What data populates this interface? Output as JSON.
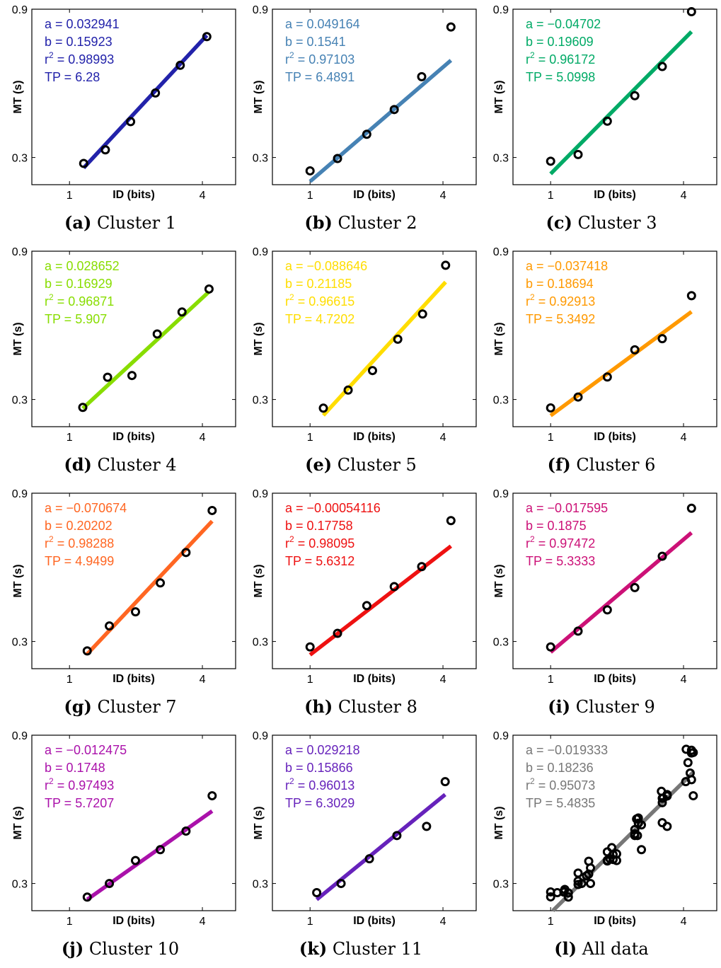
{
  "chart_data": [
    {
      "type": "scatter",
      "panel_letter": "(a)",
      "caption": "Cluster 1",
      "color": "#2222aa",
      "stats": {
        "a": "a = 0.032941",
        "b": "b = 0.15923",
        "r2": "0.98993",
        "tp": "TP = 6.28"
      },
      "xlabel": "ID (bits)",
      "ylabel": "MT (s)",
      "xlim": [
        0.15,
        4.75
      ],
      "ylim": [
        0.19,
        0.9
      ],
      "xticks": [
        "1",
        "4"
      ],
      "xtick_values": [
        1,
        4
      ],
      "yticks": [
        "0.3",
        "0.9"
      ],
      "ytick_values": [
        0.3,
        0.9
      ],
      "x": [
        1.32,
        1.81,
        2.38,
        2.94,
        3.5,
        4.1
      ],
      "y": [
        0.276,
        0.331,
        0.445,
        0.561,
        0.673,
        0.789
      ],
      "fit": {
        "x": [
          1.32,
          4.1
        ],
        "y": [
          0.258,
          0.794
        ]
      }
    },
    {
      "type": "scatter",
      "panel_letter": "(b)",
      "caption": "Cluster 2",
      "color": "#4682b4",
      "stats": {
        "a": "a = 0.049164",
        "b": "b = 0.1541",
        "r2": "0.97103",
        "tp": "TP = 6.4891"
      },
      "xlabel": "ID (bits)",
      "ylabel": "MT (s)",
      "xlim": [
        0.15,
        4.75
      ],
      "ylim": [
        0.19,
        0.9
      ],
      "xticks": [
        "1",
        "4"
      ],
      "xtick_values": [
        1,
        4
      ],
      "yticks": [
        "0.3",
        "0.9"
      ],
      "ytick_values": [
        0.3,
        0.9
      ],
      "x": [
        1.0,
        1.62,
        2.28,
        2.9,
        3.52,
        4.18
      ],
      "y": [
        0.246,
        0.296,
        0.394,
        0.494,
        0.627,
        0.828
      ],
      "fit": {
        "x": [
          1.0,
          4.18
        ],
        "y": [
          0.203,
          0.693
        ]
      }
    },
    {
      "type": "scatter",
      "panel_letter": "(c)",
      "caption": "Cluster 3",
      "color": "#00aa66",
      "stats": {
        "a": "a = −0.04702",
        "b": "b = 0.19609",
        "r2": "0.96172",
        "tp": "TP = 5.0998"
      },
      "xlabel": "ID (bits)",
      "ylabel": "MT (s)",
      "xlim": [
        0.15,
        4.75
      ],
      "ylim": [
        0.19,
        0.9
      ],
      "xticks": [
        "1",
        "4"
      ],
      "xtick_values": [
        1,
        4
      ],
      "yticks": [
        "0.3",
        "0.9"
      ],
      "ytick_values": [
        0.3,
        0.9
      ],
      "x": [
        1.0,
        1.62,
        2.28,
        2.9,
        3.52,
        4.18
      ],
      "y": [
        0.285,
        0.312,
        0.447,
        0.55,
        0.668,
        0.89
      ],
      "fit": {
        "x": [
          1.0,
          4.18
        ],
        "y": [
          0.234,
          0.809
        ]
      }
    },
    {
      "type": "scatter",
      "panel_letter": "(d)",
      "caption": "Cluster 4",
      "color": "#88dd00",
      "stats": {
        "a": "a = 0.028652",
        "b": "b = 0.16929",
        "r2": "0.96871",
        "tp": "TP = 5.907"
      },
      "xlabel": "ID (bits)",
      "ylabel": "MT (s)",
      "xlim": [
        0.15,
        4.75
      ],
      "ylim": [
        0.19,
        0.9
      ],
      "xticks": [
        "1",
        "4"
      ],
      "xtick_values": [
        1,
        4
      ],
      "yticks": [
        "0.3",
        "0.9"
      ],
      "ytick_values": [
        0.3,
        0.9
      ],
      "x": [
        1.3,
        1.86,
        2.41,
        2.98,
        3.54,
        4.15
      ],
      "y": [
        0.268,
        0.39,
        0.397,
        0.565,
        0.654,
        0.747
      ],
      "fit": {
        "x": [
          1.3,
          4.15
        ],
        "y": [
          0.264,
          0.736
        ]
      }
    },
    {
      "type": "scatter",
      "panel_letter": "(e)",
      "caption": "Cluster 5",
      "color": "#ffdd00",
      "stats": {
        "a": "a = −0.088646",
        "b": "b = 0.21185",
        "r2": "0.96615",
        "tp": "TP = 4.7202"
      },
      "xlabel": "ID (bits)",
      "ylabel": "MT (s)",
      "xlim": [
        0.15,
        4.75
      ],
      "ylim": [
        0.19,
        0.9
      ],
      "xticks": [
        "1",
        "4"
      ],
      "xtick_values": [
        1,
        4
      ],
      "yticks": [
        "0.3",
        "0.9"
      ],
      "ytick_values": [
        0.3,
        0.9
      ],
      "x": [
        1.3,
        1.86,
        2.41,
        2.98,
        3.54,
        4.06
      ],
      "y": [
        0.265,
        0.338,
        0.417,
        0.544,
        0.646,
        0.843
      ],
      "fit": {
        "x": [
          1.3,
          4.06
        ],
        "y": [
          0.236,
          0.775
        ]
      }
    },
    {
      "type": "scatter",
      "panel_letter": "(f)",
      "caption": "Cluster 6",
      "color": "#ff9900",
      "stats": {
        "a": "a = −0.037418",
        "b": "b = 0.18694",
        "r2": "0.92913",
        "tp": "TP = 5.3492"
      },
      "xlabel": "ID (bits)",
      "ylabel": "MT (s)",
      "xlim": [
        0.15,
        4.75
      ],
      "ylim": [
        0.19,
        0.9
      ],
      "xticks": [
        "1",
        "4"
      ],
      "xtick_values": [
        1,
        4
      ],
      "yticks": [
        "0.3",
        "0.9"
      ],
      "ytick_values": [
        0.3,
        0.9
      ],
      "x": [
        1.0,
        1.62,
        2.28,
        2.9,
        3.52,
        4.18
      ],
      "y": [
        0.266,
        0.31,
        0.391,
        0.501,
        0.546,
        0.72
      ],
      "fit": {
        "x": [
          1.0,
          4.18
        ],
        "y": [
          0.235,
          0.655
        ]
      }
    },
    {
      "type": "scatter",
      "panel_letter": "(g)",
      "caption": "Cluster 7",
      "color": "#ff6622",
      "stats": {
        "a": "a = −0.070674",
        "b": "b = 0.20202",
        "r2": "0.98288",
        "tp": "TP = 4.9499"
      },
      "xlabel": "ID (bits)",
      "ylabel": "MT (s)",
      "xlim": [
        0.15,
        4.75
      ],
      "ylim": [
        0.19,
        0.9
      ],
      "xticks": [
        "1",
        "4"
      ],
      "xtick_values": [
        1,
        4
      ],
      "yticks": [
        "0.3",
        "0.9"
      ],
      "ytick_values": [
        0.3,
        0.9
      ],
      "x": [
        1.4,
        1.9,
        2.49,
        3.05,
        3.63,
        4.22
      ],
      "y": [
        0.262,
        0.363,
        0.42,
        0.537,
        0.66,
        0.83
      ],
      "fit": {
        "x": [
          1.4,
          4.22
        ],
        "y": [
          0.249,
          0.787
        ]
      }
    },
    {
      "type": "scatter",
      "panel_letter": "(h)",
      "caption": "Cluster 8",
      "color": "#ee1111",
      "stats": {
        "a": "a = −0.00054116",
        "b": "b = 0.17758",
        "r2": "0.98095",
        "tp": "TP = 5.6312"
      },
      "xlabel": "ID (bits)",
      "ylabel": "MT (s)",
      "xlim": [
        0.15,
        4.75
      ],
      "ylim": [
        0.19,
        0.9
      ],
      "xticks": [
        "1",
        "4"
      ],
      "xtick_values": [
        1,
        4
      ],
      "yticks": [
        "0.3",
        "0.9"
      ],
      "ytick_values": [
        0.3,
        0.9
      ],
      "x": [
        1.0,
        1.62,
        2.28,
        2.9,
        3.52,
        4.18
      ],
      "y": [
        0.278,
        0.333,
        0.445,
        0.522,
        0.603,
        0.789
      ],
      "fit": {
        "x": [
          1.0,
          4.18
        ],
        "y": [
          0.246,
          0.686
        ]
      }
    },
    {
      "type": "scatter",
      "panel_letter": "(i)",
      "caption": "Cluster 9",
      "color": "#cc1177",
      "stats": {
        "a": "a = −0.017595",
        "b": "b = 0.1875",
        "r2": "0.97472",
        "tp": "TP = 5.3333"
      },
      "xlabel": "ID (bits)",
      "ylabel": "MT (s)",
      "xlim": [
        0.15,
        4.75
      ],
      "ylim": [
        0.19,
        0.9
      ],
      "xticks": [
        "1",
        "4"
      ],
      "xtick_values": [
        1,
        4
      ],
      "yticks": [
        "0.3",
        "0.9"
      ],
      "ytick_values": [
        0.3,
        0.9
      ],
      "x": [
        1.0,
        1.62,
        2.28,
        2.9,
        3.52,
        4.18
      ],
      "y": [
        0.278,
        0.342,
        0.428,
        0.518,
        0.645,
        0.839
      ],
      "fit": {
        "x": [
          1.0,
          4.18
        ],
        "y": [
          0.257,
          0.74
        ]
      }
    },
    {
      "type": "scatter",
      "panel_letter": "(j)",
      "caption": "Cluster 10",
      "color": "#aa11aa",
      "stats": {
        "a": "a = −0.012475",
        "b": "b = 0.1748",
        "r2": "0.97493",
        "tp": "TP = 5.7207"
      },
      "xlabel": "ID (bits)",
      "ylabel": "MT (s)",
      "xlim": [
        0.15,
        4.75
      ],
      "ylim": [
        0.19,
        0.9
      ],
      "xticks": [
        "1",
        "4"
      ],
      "xtick_values": [
        1,
        4
      ],
      "yticks": [
        "0.3",
        "0.9"
      ],
      "ytick_values": [
        0.3,
        0.9
      ],
      "x": [
        1.4,
        1.9,
        2.49,
        3.05,
        3.63,
        4.22
      ],
      "y": [
        0.245,
        0.3,
        0.393,
        0.437,
        0.512,
        0.655
      ],
      "fit": {
        "x": [
          1.4,
          4.22
        ],
        "y": [
          0.235,
          0.593
        ]
      }
    },
    {
      "type": "scatter",
      "panel_letter": "(k)",
      "caption": "Cluster 11",
      "color": "#6622bb",
      "stats": {
        "a": "a = 0.029218",
        "b": "b = 0.15866",
        "r2": "0.96013",
        "tp": "TP = 6.3029"
      },
      "xlabel": "ID (bits)",
      "ylabel": "MT (s)",
      "xlim": [
        0.15,
        4.75
      ],
      "ylim": [
        0.19,
        0.9
      ],
      "xticks": [
        "1",
        "4"
      ],
      "xtick_values": [
        1,
        4
      ],
      "yticks": [
        "0.3",
        "0.9"
      ],
      "ytick_values": [
        0.3,
        0.9
      ],
      "x": [
        1.15,
        1.7,
        2.34,
        2.96,
        3.63,
        4.05
      ],
      "y": [
        0.263,
        0.3,
        0.4,
        0.494,
        0.531,
        0.712
      ],
      "fit": {
        "x": [
          1.15,
          4.05
        ],
        "y": [
          0.235,
          0.66
        ]
      }
    },
    {
      "type": "scatter",
      "panel_letter": "(l)",
      "caption": "All data",
      "color": "#777777",
      "stats": {
        "a": "a = −0.019333",
        "b": "b = 0.18236",
        "r2": "0.95073",
        "tp": "TP = 5.4835"
      },
      "xlabel": "ID (bits)",
      "ylabel": "MT (s)",
      "xlim": [
        0.15,
        4.75
      ],
      "ylim": [
        0.19,
        0.9
      ],
      "xticks": [
        "1",
        "4"
      ],
      "xtick_values": [
        1,
        4
      ],
      "yticks": [
        "0.3",
        "0.9"
      ],
      "ytick_values": [
        0.3,
        0.9
      ],
      "x": [
        1.0,
        1.3,
        1.62,
        1.86,
        2.28,
        2.41,
        2.9,
        2.98,
        3.52,
        3.63,
        4.06,
        4.18,
        1.32,
        1.81,
        2.38,
        2.94,
        3.5,
        4.1,
        1.4,
        1.9,
        2.49,
        3.05,
        3.63,
        4.22,
        1.15,
        1.7,
        2.34,
        2.96,
        3.63,
        4.05,
        1.62,
        2.28,
        2.9,
        3.52,
        4.18,
        1.0,
        1.3,
        1.86,
        2.41,
        2.98,
        3.54,
        4.15,
        1.4,
        1.9,
        2.49,
        3.05,
        4.22,
        1.62,
        2.28,
        2.9,
        3.52,
        4.18
      ],
      "y": [
        0.266,
        0.268,
        0.31,
        0.39,
        0.391,
        0.397,
        0.501,
        0.565,
        0.546,
        0.654,
        0.843,
        0.72,
        0.276,
        0.331,
        0.445,
        0.561,
        0.673,
        0.789,
        0.262,
        0.363,
        0.42,
        0.537,
        0.66,
        0.83,
        0.263,
        0.3,
        0.4,
        0.494,
        0.531,
        0.712,
        0.296,
        0.394,
        0.494,
        0.627,
        0.828,
        0.246,
        0.265,
        0.338,
        0.417,
        0.544,
        0.646,
        0.747,
        0.245,
        0.3,
        0.393,
        0.437,
        0.655,
        0.342,
        0.428,
        0.518,
        0.645,
        0.839
      ],
      "fit": {
        "x": [
          1.05,
          4.22
        ],
        "y": [
          0.19,
          0.75
        ]
      }
    }
  ]
}
